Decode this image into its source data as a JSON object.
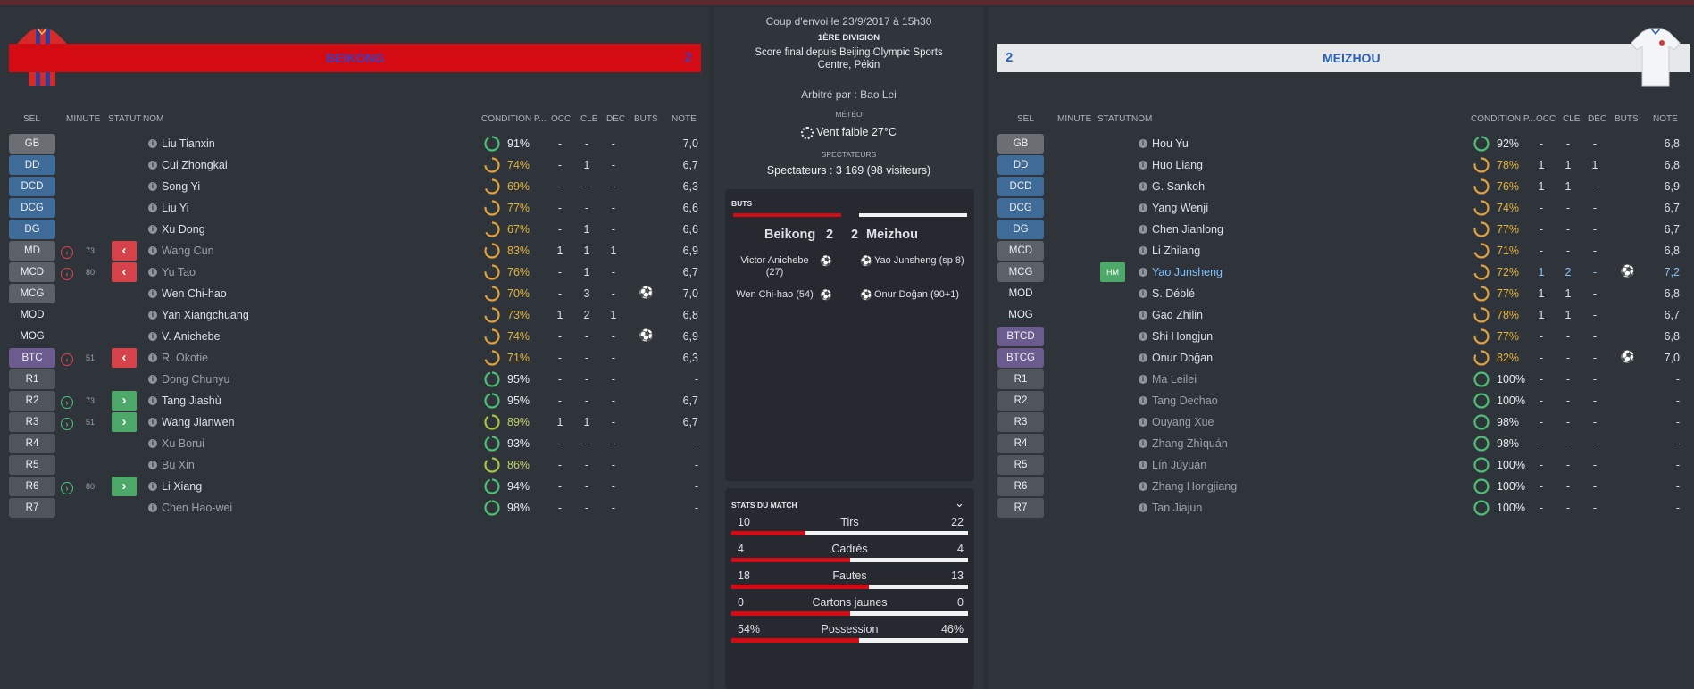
{
  "home": {
    "name": "BEIKONG",
    "score": "2",
    "players": [
      {
        "pos": "GB",
        "name": "Liu Tianxin",
        "cond": "91%",
        "occ": "-",
        "cle": "-",
        "dec": "-",
        "note": "7,0"
      },
      {
        "pos": "DD",
        "name": "Cui Zhongkai",
        "cond": "74%",
        "occ": "-",
        "cle": "1",
        "dec": "-",
        "note": "6,7"
      },
      {
        "pos": "DCD",
        "name": "Song Yi",
        "cond": "69%",
        "occ": "-",
        "cle": "-",
        "dec": "-",
        "note": "6,3"
      },
      {
        "pos": "DCG",
        "name": "Liu Yi",
        "cond": "77%",
        "occ": "-",
        "cle": "-",
        "dec": "-",
        "note": "6,6"
      },
      {
        "pos": "DG",
        "name": "Xu Dong",
        "cond": "67%",
        "occ": "-",
        "cle": "1",
        "dec": "-",
        "note": "6,6"
      },
      {
        "pos": "MD",
        "name": "Wang Cun",
        "sub_min": "73",
        "cond": "83%",
        "occ": "1",
        "cle": "1",
        "dec": "1",
        "note": "6,9"
      },
      {
        "pos": "MCD",
        "name": "Yu Tao",
        "sub_min": "80",
        "cond": "76%",
        "occ": "-",
        "cle": "1",
        "dec": "-",
        "note": "6,7"
      },
      {
        "pos": "MCG",
        "name": "Wen Chi-hao",
        "cond": "70%",
        "occ": "-",
        "cle": "3",
        "dec": "-",
        "note": "7,0"
      },
      {
        "pos": "MOD",
        "name": "Yan Xiangchuang",
        "cond": "73%",
        "occ": "1",
        "cle": "2",
        "dec": "1",
        "note": "6,8"
      },
      {
        "pos": "MOG",
        "name": "V. Anichebe",
        "cond": "74%",
        "occ": "-",
        "cle": "-",
        "dec": "-",
        "note": "6,9"
      },
      {
        "pos": "BTC",
        "name": "R. Okotie",
        "sub_min": "51",
        "cond": "71%",
        "occ": "-",
        "cle": "-",
        "dec": "-",
        "note": "6,3"
      },
      {
        "pos": "R1",
        "name": "Dong Chunyu",
        "cond": "95%",
        "occ": "-",
        "cle": "-",
        "dec": "-",
        "note": "-"
      },
      {
        "pos": "R2",
        "name": "Tang Jiashù",
        "sub_min": "73",
        "cond": "95%",
        "occ": "-",
        "cle": "-",
        "dec": "-",
        "note": "6,7"
      },
      {
        "pos": "R3",
        "name": "Wang Jianwen",
        "sub_min": "51",
        "cond": "89%",
        "occ": "1",
        "cle": "1",
        "dec": "-",
        "note": "6,7"
      },
      {
        "pos": "R4",
        "name": "Xu Borui",
        "cond": "93%",
        "occ": "-",
        "cle": "-",
        "dec": "-",
        "note": "-"
      },
      {
        "pos": "R5",
        "name": "Bu Xin",
        "cond": "86%",
        "occ": "-",
        "cle": "-",
        "dec": "-",
        "note": "-"
      },
      {
        "pos": "R6",
        "name": "Li Xiang",
        "sub_min": "80",
        "cond": "94%",
        "occ": "-",
        "cle": "-",
        "dec": "-",
        "note": "-"
      },
      {
        "pos": "R7",
        "name": "Chen Hao-wei",
        "cond": "98%",
        "occ": "-",
        "cle": "-",
        "dec": "-",
        "note": "-"
      }
    ]
  },
  "away": {
    "name": "MEIZHOU",
    "score": "2",
    "players": [
      {
        "pos": "GB",
        "name": "Hou Yu",
        "cond": "92%",
        "occ": "-",
        "cle": "-",
        "dec": "-",
        "note": "6,8"
      },
      {
        "pos": "DD",
        "name": "Huo Liang",
        "cond": "78%",
        "occ": "1",
        "cle": "1",
        "dec": "1",
        "note": "6,8"
      },
      {
        "pos": "DCD",
        "name": "G. Sankoh",
        "cond": "76%",
        "occ": "1",
        "cle": "1",
        "dec": "-",
        "note": "6,9"
      },
      {
        "pos": "DCG",
        "name": "Yang Wenjí",
        "cond": "74%",
        "occ": "-",
        "cle": "-",
        "dec": "-",
        "note": "6,7"
      },
      {
        "pos": "DG",
        "name": "Chen Jianlong",
        "cond": "77%",
        "occ": "-",
        "cle": "-",
        "dec": "-",
        "note": "6,7"
      },
      {
        "pos": "MCD",
        "name": "Li Zhilang",
        "cond": "71%",
        "occ": "-",
        "cle": "-",
        "dec": "-",
        "note": "6,8"
      },
      {
        "pos": "MCG",
        "name": "Yao Junsheng",
        "status": "HM",
        "cond": "72%",
        "occ": "1",
        "cle": "2",
        "dec": "-",
        "note": "7,2"
      },
      {
        "pos": "MOD",
        "name": "S. Déblé",
        "cond": "77%",
        "occ": "1",
        "cle": "1",
        "dec": "-",
        "note": "6,8"
      },
      {
        "pos": "MOG",
        "name": "Gao Zhilin",
        "cond": "78%",
        "occ": "1",
        "cle": "1",
        "dec": "-",
        "note": "6,7"
      },
      {
        "pos": "BTCD",
        "name": "Shi Hongjun",
        "cond": "77%",
        "occ": "-",
        "cle": "-",
        "dec": "-",
        "note": "6,8"
      },
      {
        "pos": "BTCG",
        "name": "Onur Doğan",
        "cond": "82%",
        "occ": "-",
        "cle": "-",
        "dec": "-",
        "note": "7,0"
      },
      {
        "pos": "R1",
        "name": "Ma Leilei",
        "cond": "100%",
        "occ": "-",
        "cle": "-",
        "dec": "-",
        "note": "-"
      },
      {
        "pos": "R2",
        "name": "Tang Dechao",
        "cond": "100%",
        "occ": "-",
        "cle": "-",
        "dec": "-",
        "note": "-"
      },
      {
        "pos": "R3",
        "name": "Ouyang Xue",
        "cond": "98%",
        "occ": "-",
        "cle": "-",
        "dec": "-",
        "note": "-"
      },
      {
        "pos": "R4",
        "name": "Zhang Zhìquán",
        "cond": "98%",
        "occ": "-",
        "cle": "-",
        "dec": "-",
        "note": "-"
      },
      {
        "pos": "R5",
        "name": "Lín Júyuán",
        "cond": "100%",
        "occ": "-",
        "cle": "-",
        "dec": "-",
        "note": "-"
      },
      {
        "pos": "R6",
        "name": "Zhang Hongjiang",
        "cond": "100%",
        "occ": "-",
        "cle": "-",
        "dec": "-",
        "note": "-"
      },
      {
        "pos": "R7",
        "name": "Tan Jiajun",
        "cond": "100%",
        "occ": "-",
        "cle": "-",
        "dec": "-",
        "note": "-"
      }
    ]
  },
  "headers": {
    "sel": "SÉL",
    "minute": "MINUTE",
    "statut": "STATUT",
    "nom": "NOM",
    "condition": "CONDITION P...",
    "occ": "OCC",
    "cle": "CLÉ",
    "dec": "DÉC",
    "buts": "BUTS",
    "note": "NOTE"
  },
  "match": {
    "kickoff": "Coup d'envoi le 23/9/2017 à 15h30",
    "division": "1ÈRE DIVISION",
    "result": "Score final depuis Beijing Olympic Sports Centre, Pékin",
    "referee": "Arbitré par : Bao Lei",
    "weather_label": "MÉTÉO",
    "weather": "Vent faible 27°C",
    "spectators_label": "SPECTATEURS",
    "spectators": "Spectateurs : 3 169 (98 visiteurs)"
  },
  "goals": {
    "title": "BUTS",
    "home_team": "Beikong",
    "home_score": "2",
    "away_team": "Meizhou",
    "away_score": "2",
    "home_scorers": [
      "Victor Anichebe (27)",
      "Wen Chi-hao (54)"
    ],
    "away_scorers": [
      "Yao Junsheng (sp 8)",
      "Onur Doğan (90+1)"
    ]
  },
  "stats": {
    "title": "STATS DU MATCH",
    "rows": [
      {
        "label": "Tirs",
        "home": "10",
        "away": "22"
      },
      {
        "label": "Cadrés",
        "home": "4",
        "away": "4"
      },
      {
        "label": "Fautes",
        "home": "18",
        "away": "13"
      },
      {
        "label": "Cartons jaunes",
        "home": "0",
        "away": "0"
      },
      {
        "label": "Possession",
        "home": "54%",
        "away": "46%"
      }
    ]
  },
  "colors": {
    "home": "#d40b12",
    "away_banner": "#e6e8ea",
    "accent_text": "#e2b33b",
    "link": "#7ec1ff"
  }
}
